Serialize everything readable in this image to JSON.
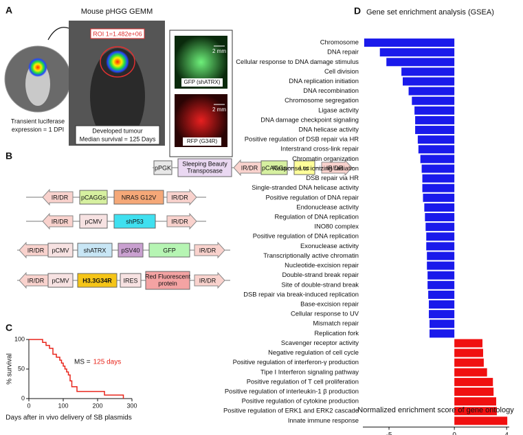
{
  "panel_a": {
    "letter": "A",
    "title": "Mouse pHGG GEMM",
    "roi_label": "ROI 1=1.482e+06",
    "luciferase_caption": [
      "Transient luciferase",
      "expression = 1 DPI"
    ],
    "tumour_caption": [
      "Developed tumour",
      "Median survival = 125 Days"
    ],
    "gfp_scale": "2 mm",
    "gfp_label": "GFP (shATRX)",
    "rfp_scale": "2 mm",
    "rfp_label": "RFP (G34R)"
  },
  "panel_b": {
    "letter": "B",
    "constructs": [
      [
        "pPGK",
        [
          "Sleeping Beauty",
          "Transposase"
        ],
        "IR/DR",
        "pCAGGs",
        "Luc",
        "IR/DR"
      ],
      [
        "IR/DR",
        "pCAGGs",
        "NRAS G12V",
        "IR/DR"
      ],
      [
        "IR/DR",
        "pCMV",
        "shP53",
        "IR/DR"
      ],
      [
        "IR/DR",
        "pCMV",
        "shATRX",
        "pSV40",
        "GFP",
        "IR/DR"
      ],
      [
        "IR/DR",
        "pCMV",
        "H3.3G34R",
        "IRES",
        [
          "Red Fluorescent",
          "protein"
        ],
        "IR/DR"
      ]
    ]
  },
  "chart_data": [
    {
      "panel": "C",
      "type": "line",
      "step": true,
      "color": "#e8241a",
      "x": [
        0,
        40,
        50,
        60,
        70,
        80,
        90,
        95,
        100,
        105,
        110,
        115,
        120,
        125,
        140,
        220,
        275
      ],
      "values": [
        100,
        95,
        90,
        85,
        75,
        70,
        65,
        60,
        55,
        50,
        45,
        40,
        30,
        20,
        12,
        6,
        0
      ],
      "xlim": [
        0,
        300
      ],
      "xticks": [
        0,
        100,
        200,
        300
      ],
      "ylim": [
        0,
        100
      ],
      "yticks": [
        0,
        50,
        100
      ],
      "xlabel": "Days after in vivo delivery of SB plasmids",
      "ylabel": "% survival",
      "annotation": "MS =",
      "annotation_highlight": "125 days"
    },
    {
      "panel": "D",
      "type": "barh",
      "title": "Gene set enrichment analysis (GSEA)",
      "categories": [
        "Chromosome",
        "DNA repair",
        "Cellular response to DNA damage stimulus",
        "Cell division",
        "DNA replication initiation",
        "DNA recombination",
        "Chromosome segregation",
        "Ligase activity",
        "DNA damage checkpoint signaling",
        "DNA helicase activity",
        "Positive regulation of DSB repair via HR",
        "Interstrand cross-link repair",
        "Chromatin organization",
        "Response to ionizing radiation",
        "DSB repair via HR",
        "Single-stranded DNA helicase activity",
        "Positive regulation of DNA repair",
        "Endonuclease activity",
        "Regulation of DNA replication",
        "INO80 complex",
        "Positive regulation of DNA replication",
        "Exonuclease activity",
        "Transcriptionally active chromatin",
        "Nucleotide-excision repair",
        "Double-strand break repair",
        "Site of double-strand break",
        "DSB repair via break-induced replication",
        "Base-excision repair",
        "Cellular response to UV",
        "Mismatch repair",
        "Replication fork",
        "Scavenger receptor activity",
        "Negative regulation of cell cycle",
        "Positive regulation of interferon-γ production",
        "Tipe I Interferon signaling pathway",
        "Positive regulation of T cell proliferation",
        "Positive regulation of interleukin-1 β production",
        "Positive regulation of cytokine production",
        "Positive regulation of  ERK1 and ERK2 cascade",
        "Innate immune response"
      ],
      "values": [
        -6.9,
        -5.7,
        -5.2,
        -4.05,
        -3.95,
        -3.5,
        -3.25,
        -3.05,
        -3.0,
        -3.0,
        -2.8,
        -2.75,
        -2.6,
        -2.5,
        -2.45,
        -2.45,
        -2.4,
        -2.3,
        -2.25,
        -2.2,
        -2.15,
        -2.15,
        -2.1,
        -2.1,
        -2.05,
        -2.05,
        -2.0,
        -1.95,
        -1.95,
        -1.9,
        -1.9,
        2.15,
        2.2,
        2.25,
        2.5,
        2.95,
        3.0,
        3.2,
        3.25,
        4.05
      ],
      "negative_color": "#1a1aeb",
      "positive_color": "#f01010",
      "xlim": [
        -7,
        4.2
      ],
      "xticks": [
        -5,
        0,
        4
      ],
      "xlabel": "Normalized enrichment score of gene ontology"
    }
  ]
}
